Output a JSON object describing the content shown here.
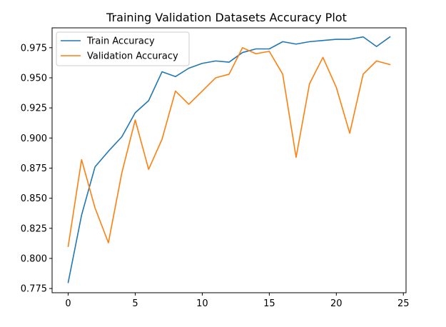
{
  "chart_data": {
    "type": "line",
    "title": "Training Validation Datasets Accuracy Plot",
    "xlabel": "",
    "ylabel": "",
    "xlim": [
      -1.2,
      25.2
    ],
    "ylim": [
      0.7715,
      0.9915
    ],
    "xticks": [
      0,
      5,
      10,
      15,
      20,
      25
    ],
    "yticks": [
      0.775,
      0.8,
      0.825,
      0.85,
      0.875,
      0.9,
      0.925,
      0.95,
      0.975
    ],
    "ytick_labels": [
      "0.775",
      "0.800",
      "0.825",
      "0.850",
      "0.875",
      "0.900",
      "0.925",
      "0.950",
      "0.975"
    ],
    "grid": false,
    "legend": "top-left",
    "x": [
      0,
      1,
      2,
      3,
      4,
      5,
      6,
      7,
      8,
      9,
      10,
      11,
      12,
      13,
      14,
      15,
      16,
      17,
      18,
      19,
      20,
      21,
      22,
      23,
      24
    ],
    "series": [
      {
        "name": "Train Accuracy",
        "color": "#1f77b4",
        "values": [
          0.78,
          0.836,
          0.876,
          0.889,
          0.901,
          0.921,
          0.931,
          0.955,
          0.951,
          0.958,
          0.962,
          0.964,
          0.963,
          0.971,
          0.974,
          0.974,
          0.98,
          0.978,
          0.98,
          0.981,
          0.982,
          0.982,
          0.984,
          0.976,
          0.984
        ]
      },
      {
        "name": "Validation Accuracy",
        "color": "#ff7f0e",
        "values": [
          0.81,
          0.882,
          0.842,
          0.813,
          0.871,
          0.915,
          0.874,
          0.899,
          0.939,
          0.928,
          0.939,
          0.95,
          0.953,
          0.975,
          0.97,
          0.972,
          0.953,
          0.884,
          0.945,
          0.967,
          0.942,
          0.904,
          0.953,
          0.964,
          0.961
        ]
      }
    ]
  }
}
